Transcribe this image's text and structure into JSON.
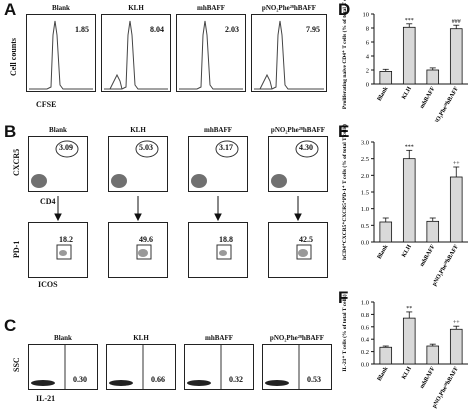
{
  "panel_letters": {
    "A": "A",
    "B": "B",
    "C": "C",
    "D": "D",
    "E": "E",
    "F": "F"
  },
  "groups": [
    "Blank",
    "KLH",
    "mhBAFF",
    "pNO₂Phe²⁸hBAFF"
  ],
  "panelA": {
    "ylabel": "Cell counts",
    "xlabel": "CFSE",
    "values": [
      "1.85",
      "8.04",
      "2.03",
      "7.95"
    ]
  },
  "panelB": {
    "top": {
      "ylabel": "CXCR5",
      "xlabel": "CD4",
      "values": [
        "3.09",
        "5.03",
        "3.17",
        "4.30"
      ]
    },
    "bottom": {
      "ylabel": "PD-1",
      "xlabel": "ICOS",
      "values": [
        "18.2",
        "49.6",
        "18.8",
        "42.5"
      ]
    }
  },
  "panelC": {
    "ylabel": "SSC",
    "xlabel": "IL-21",
    "values": [
      "0.30",
      "0.66",
      "0.32",
      "0.53"
    ]
  },
  "chart_data": [
    {
      "panel": "D",
      "type": "bar",
      "categories": [
        "Blank",
        "KLH",
        "mhBAFF",
        "pNO₂Phe²⁸hBAFF"
      ],
      "values": [
        1.8,
        8.1,
        2.0,
        7.9
      ],
      "errors": [
        0.3,
        0.5,
        0.3,
        0.5
      ],
      "ylabel": "Proliferating naive CD4⁺ T cells (% of total T cells)",
      "ylim": [
        0,
        10
      ],
      "yticks": [
        0,
        2,
        4,
        6,
        8,
        10
      ],
      "annotations": [
        "",
        "***",
        "",
        "###"
      ]
    },
    {
      "panel": "E",
      "type": "bar",
      "categories": [
        "Blank",
        "KLH",
        "mhBAFF",
        "pNO₂Phe²⁸hBAFF"
      ],
      "values": [
        0.6,
        2.5,
        0.62,
        1.95
      ],
      "errors": [
        0.12,
        0.25,
        0.1,
        0.3
      ],
      "ylabel": "hCD4⁺CXCR5⁺CXCR5⁺PD-1⁺ T cells (% of total T cells)",
      "ylim": [
        0,
        3
      ],
      "yticks": [
        0.0,
        0.5,
        1.0,
        1.5,
        2.0,
        2.5,
        3.0
      ],
      "annotations": [
        "",
        "***",
        "",
        "++"
      ]
    },
    {
      "panel": "F",
      "type": "bar",
      "categories": [
        "Blank",
        "KLH",
        "mhBAFF",
        "pNO₂Phe²⁸hBAFF"
      ],
      "values": [
        0.27,
        0.74,
        0.29,
        0.56
      ],
      "errors": [
        0.02,
        0.1,
        0.03,
        0.05
      ],
      "ylabel": "IL-21⁺ T cells (% of total T cells)",
      "ylim": [
        0,
        1.0
      ],
      "yticks": [
        0.0,
        0.2,
        0.4,
        0.6,
        0.8,
        1.0
      ],
      "annotations": [
        "",
        "**",
        "",
        "++"
      ]
    }
  ]
}
